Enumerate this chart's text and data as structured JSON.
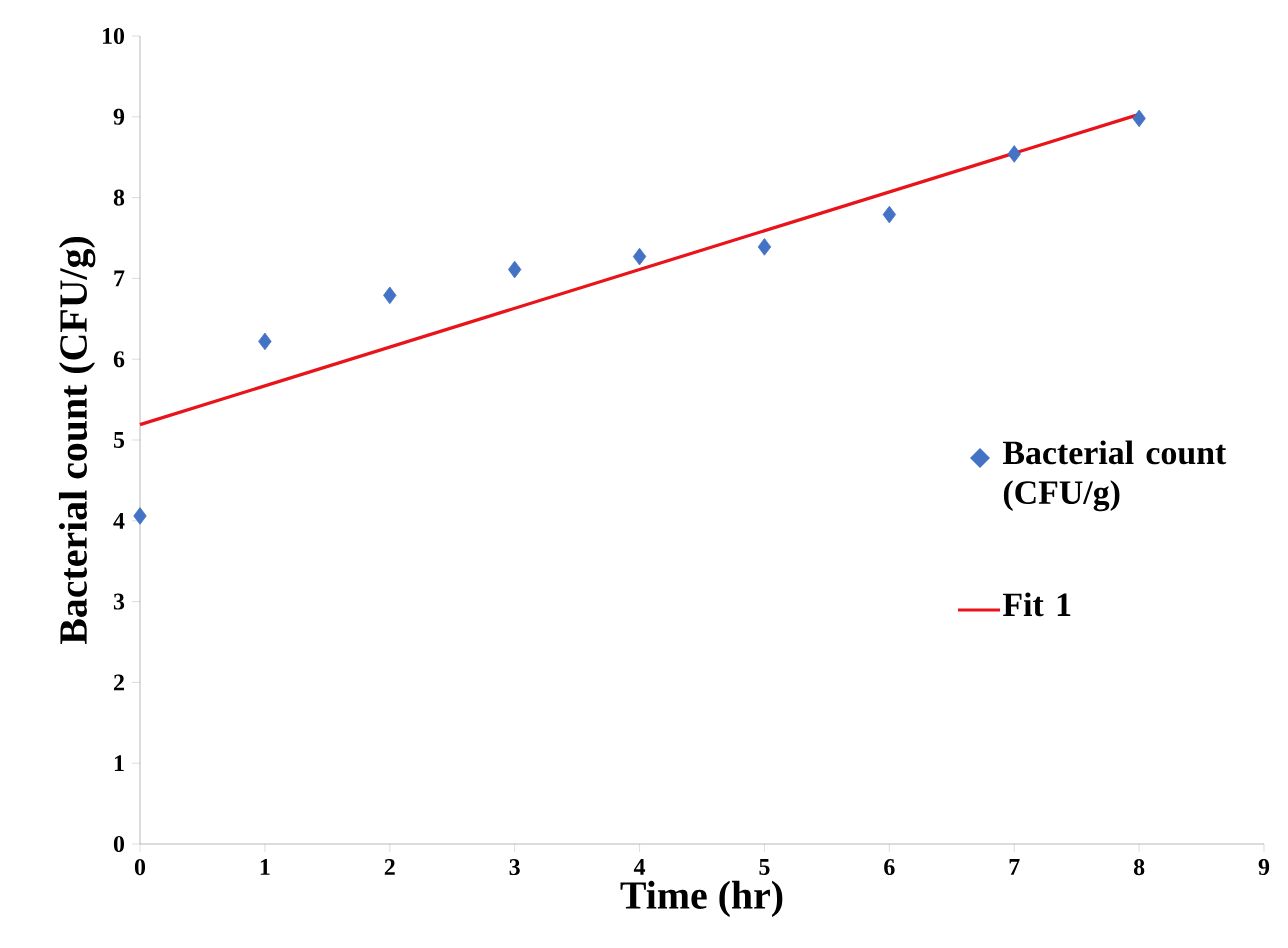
{
  "chart_data": {
    "type": "scatter",
    "xlabel": "Time (hr)",
    "ylabel": "Bacterial count (CFU/g)",
    "xlim": [
      0,
      9
    ],
    "xticks": [
      0,
      1,
      2,
      3,
      4,
      5,
      6,
      7,
      8,
      9
    ],
    "ylim": [
      0,
      10
    ],
    "yticks": [
      0,
      1,
      2,
      3,
      4,
      5,
      6,
      7,
      8,
      9,
      10
    ],
    "grid": false,
    "legend": "right",
    "series": [
      {
        "name": "Bacterial count (CFU/g)",
        "marker": "diamond",
        "color": "#4472c4",
        "x": [
          0,
          1,
          2,
          3,
          4,
          5,
          6,
          7,
          8
        ],
        "values": [
          4.06,
          6.22,
          6.79,
          7.11,
          7.27,
          7.39,
          7.79,
          8.54,
          8.98
        ]
      },
      {
        "name": "Fit 1",
        "type": "line",
        "marker": "none",
        "line_style": "solid",
        "color": "#e8141a",
        "x": [
          0,
          8
        ],
        "values": [
          5.19,
          9.03
        ]
      }
    ]
  }
}
